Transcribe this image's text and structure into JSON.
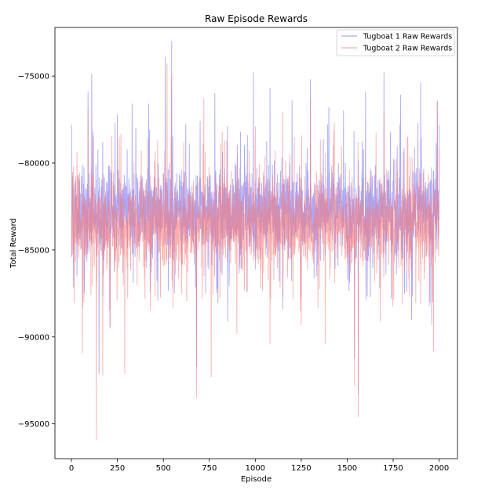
{
  "chart_data": {
    "type": "line",
    "title": "Raw Episode Rewards",
    "xlabel": "Episode",
    "ylabel": "Total Reward",
    "xlim": [
      -90,
      2100
    ],
    "ylim": [
      -97000,
      -72200
    ],
    "x_ticks": [
      0,
      250,
      500,
      750,
      1000,
      1250,
      1500,
      1750,
      2000
    ],
    "y_ticks": [
      -95000,
      -90000,
      -85000,
      -80000,
      -75000
    ],
    "x_tick_labels": [
      "0",
      "250",
      "500",
      "750",
      "1000",
      "1250",
      "1500",
      "1750",
      "2000"
    ],
    "y_tick_labels": [
      "−95000",
      "−90000",
      "−85000",
      "−80000",
      "−75000"
    ],
    "grid": false,
    "legend_position": "top-right",
    "episodes": 2000,
    "series": [
      {
        "name": "Tugboat 1 Raw Rewards",
        "color": "#6f6ff7",
        "opacity": 0.6,
        "mean": -82900,
        "band": [
          -86000,
          -79500
        ],
        "x": [
          1,
          30,
          60,
          90,
          110,
          130,
          150,
          170,
          210,
          250,
          280,
          330,
          370,
          420,
          470,
          510,
          545,
          600,
          680,
          700,
          730,
          780,
          850,
          990,
          1000,
          1080,
          1150,
          1200,
          1250,
          1300,
          1320,
          1400,
          1450,
          1480,
          1540,
          1560,
          1600,
          1640,
          1700,
          1740,
          1790,
          1850,
          1900,
          1960,
          1990,
          2000
        ],
        "y": [
          -77800,
          -86500,
          -88300,
          -75900,
          -74900,
          -83200,
          -92100,
          -78800,
          -89400,
          -77200,
          -86300,
          -76600,
          -84800,
          -76600,
          -87900,
          -73900,
          -73000,
          -85900,
          -91700,
          -77600,
          -87500,
          -76000,
          -89100,
          -74800,
          -86100,
          -75700,
          -88400,
          -76400,
          -87700,
          -75200,
          -86600,
          -76800,
          -85900,
          -77000,
          -91200,
          -93300,
          -75900,
          -85400,
          -74800,
          -87800,
          -76100,
          -89000,
          -75400,
          -89300,
          -76400,
          -77800
        ]
      },
      {
        "name": "Tugboat 2 Raw Rewards",
        "color": "#f97a74",
        "opacity": 0.6,
        "mean": -83300,
        "band": [
          -87000,
          -80000
        ],
        "x": [
          1,
          60,
          90,
          120,
          135,
          170,
          210,
          260,
          290,
          340,
          400,
          450,
          500,
          520,
          545,
          600,
          680,
          720,
          760,
          820,
          900,
          1000,
          1080,
          1150,
          1250,
          1300,
          1380,
          1430,
          1500,
          1540,
          1560,
          1600,
          1680,
          1700,
          1780,
          1830,
          1900,
          1970,
          1990,
          2000
        ],
        "y": [
          -83000,
          -90900,
          -76800,
          -78500,
          -95900,
          -92200,
          -89500,
          -78500,
          -92100,
          -80000,
          -87800,
          -79900,
          -85900,
          -74300,
          -74900,
          -87500,
          -93500,
          -76300,
          -92300,
          -78200,
          -89800,
          -77900,
          -90400,
          -77100,
          -89300,
          -76300,
          -90400,
          -77700,
          -85400,
          -92800,
          -94600,
          -80700,
          -89100,
          -77000,
          -86000,
          -78500,
          -88100,
          -90800,
          -76500,
          -79300
        ]
      }
    ]
  }
}
